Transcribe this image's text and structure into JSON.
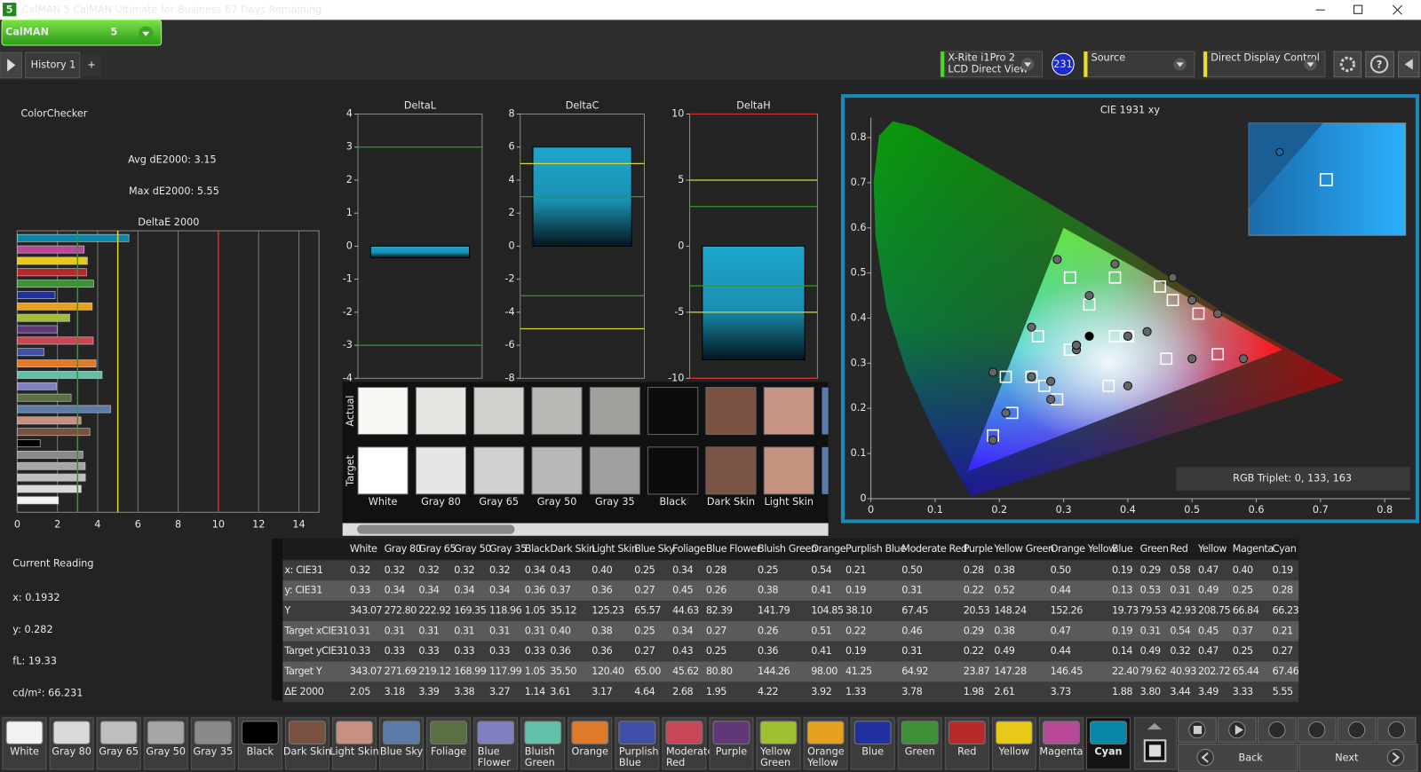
{
  "window": {
    "icon": "5",
    "title": "CalMAN 5 CalMAN Ultimate for Business 67 Days Remaining"
  },
  "logo": {
    "text": "CalMAN",
    "version": "5"
  },
  "tabs": {
    "items": [
      "History 1"
    ],
    "add": "+"
  },
  "devices": [
    {
      "lines": [
        "X-Rite i1Pro 2",
        "LCD Direct View"
      ],
      "badge": "231"
    },
    {
      "lines": [
        "Source"
      ]
    },
    {
      "lines": [
        "Direct Display Control"
      ]
    }
  ],
  "help": "?",
  "summary": {
    "title": "ColorChecker",
    "avg": "Avg dE2000: 3.15",
    "max": "Max dE2000: 5.55"
  },
  "delta_e_chart": {
    "type": "bar",
    "title": "DeltaE 2000",
    "xlim": [
      0,
      15
    ],
    "xticks": [
      0,
      2,
      4,
      6,
      8,
      10,
      12,
      14
    ],
    "thresholds": [
      {
        "value": 3,
        "color": "#2e9b2e"
      },
      {
        "value": 5,
        "color": "#d8d83a"
      },
      {
        "value": 10,
        "color": "#d23030"
      }
    ]
  },
  "delta_charts": [
    {
      "type": "bar",
      "title": "DeltaL",
      "ylim": [
        -4,
        4
      ],
      "yticks": [
        -4,
        -3,
        -2,
        -1,
        0,
        1,
        2,
        3,
        4
      ],
      "value": -0.35,
      "lines": [
        {
          "value": 3,
          "color": "#2e9b2e"
        },
        {
          "value": -3,
          "color": "#2e9b2e"
        }
      ]
    },
    {
      "type": "bar",
      "title": "DeltaC",
      "ylim": [
        -8,
        8
      ],
      "yticks": [
        -8,
        -6,
        -4,
        -2,
        0,
        2,
        4,
        6,
        8
      ],
      "value": 6,
      "lines": [
        {
          "value": 5,
          "color": "#d8d83a"
        },
        {
          "value": 3,
          "color": "#2e9b2e"
        },
        {
          "value": -3,
          "color": "#2e9b2e"
        },
        {
          "value": -5,
          "color": "#d8d83a"
        }
      ]
    },
    {
      "type": "bar",
      "title": "DeltaH",
      "ylim": [
        -10,
        10
      ],
      "yticks": [
        -10,
        -5,
        0,
        5,
        10
      ],
      "value": -8.6,
      "lines": [
        {
          "value": 10,
          "color": "#d23030"
        },
        {
          "value": 5,
          "color": "#d8d83a"
        },
        {
          "value": 3,
          "color": "#2e9b2e"
        },
        {
          "value": -3,
          "color": "#2e9b2e"
        },
        {
          "value": -5,
          "color": "#d8d83a"
        },
        {
          "value": -10,
          "color": "#d23030"
        }
      ]
    }
  ],
  "swatches": {
    "row_labels": [
      "Actual",
      "Target"
    ],
    "items": [
      {
        "label": "White",
        "actual": "#faf8f5",
        "target": "#ffffff"
      },
      {
        "label": "Gray 80",
        "actual": "#e8e6e2",
        "target": "#e6e6e6"
      },
      {
        "label": "Gray 65",
        "actual": "#d2d0cc",
        "target": "#d0d0d0"
      },
      {
        "label": "Gray 50",
        "actual": "#bab8b4",
        "target": "#b8b8b8"
      },
      {
        "label": "Gray 35",
        "actual": "#a2a09c",
        "target": "#a0a0a0"
      },
      {
        "label": "Black",
        "actual": "#0e0c0a",
        "target": "#0c0c0c"
      },
      {
        "label": "Dark Skin",
        "actual": "#7a5242",
        "target": "#7a5444"
      },
      {
        "label": "Light Skin",
        "actual": "#c89484",
        "target": "#c49480"
      }
    ]
  },
  "table": {
    "header": [
      "White",
      "Gray 80",
      "Gray 65",
      "Gray 50",
      "Gray 35",
      "Black",
      "Dark Skin",
      "Light Skin",
      "Blue Sky",
      "Foliage",
      "Blue Flower",
      "Bluish Green",
      "Orange",
      "Purplish Blue",
      "Moderate Red",
      "Purple",
      "Yellow Green",
      "Orange Yellow",
      "Blue",
      "Green",
      "Red",
      "Yellow",
      "Magenta",
      "Cyan"
    ],
    "rows": [
      {
        "label": "x: CIE31",
        "cells": [
          "0.32",
          "0.32",
          "0.32",
          "0.32",
          "0.32",
          "0.34",
          "0.43",
          "0.40",
          "0.25",
          "0.34",
          "0.28",
          "0.25",
          "0.54",
          "0.21",
          "0.50",
          "0.28",
          "0.38",
          "0.50",
          "0.19",
          "0.29",
          "0.58",
          "0.47",
          "0.40",
          "0.19"
        ]
      },
      {
        "label": "y: CIE31",
        "cells": [
          "0.33",
          "0.34",
          "0.34",
          "0.34",
          "0.34",
          "0.36",
          "0.37",
          "0.36",
          "0.27",
          "0.45",
          "0.26",
          "0.38",
          "0.41",
          "0.19",
          "0.31",
          "0.22",
          "0.52",
          "0.44",
          "0.13",
          "0.53",
          "0.31",
          "0.49",
          "0.25",
          "0.28"
        ]
      },
      {
        "label": "Y",
        "cells": [
          "343.07",
          "272.80",
          "222.92",
          "169.35",
          "118.96",
          "1.05",
          "35.12",
          "125.23",
          "65.57",
          "44.63",
          "82.39",
          "141.79",
          "104.85",
          "38.10",
          "67.45",
          "20.53",
          "148.24",
          "152.26",
          "19.73",
          "79.53",
          "42.93",
          "208.75",
          "66.84",
          "66.23"
        ]
      },
      {
        "label": "Target xCIE31",
        "cells": [
          "0.31",
          "0.31",
          "0.31",
          "0.31",
          "0.31",
          "0.31",
          "0.40",
          "0.38",
          "0.25",
          "0.34",
          "0.27",
          "0.26",
          "0.51",
          "0.22",
          "0.46",
          "0.29",
          "0.38",
          "0.47",
          "0.19",
          "0.31",
          "0.54",
          "0.45",
          "0.37",
          "0.21"
        ]
      },
      {
        "label": "Target yCIE31",
        "cells": [
          "0.33",
          "0.33",
          "0.33",
          "0.33",
          "0.33",
          "0.33",
          "0.36",
          "0.36",
          "0.27",
          "0.43",
          "0.25",
          "0.36",
          "0.41",
          "0.19",
          "0.31",
          "0.22",
          "0.49",
          "0.44",
          "0.14",
          "0.49",
          "0.32",
          "0.47",
          "0.25",
          "0.27"
        ]
      },
      {
        "label": "Target Y",
        "cells": [
          "343.07",
          "271.69",
          "219.12",
          "168.99",
          "117.99",
          "1.05",
          "35.50",
          "120.40",
          "65.00",
          "45.62",
          "80.80",
          "144.26",
          "98.00",
          "41.25",
          "64.92",
          "23.87",
          "147.28",
          "146.45",
          "22.40",
          "79.62",
          "40.93",
          "202.72",
          "65.44",
          "67.46"
        ]
      },
      {
        "label": "ΔE 2000",
        "cells": [
          "2.05",
          "3.18",
          "3.39",
          "3.38",
          "3.27",
          "1.14",
          "3.61",
          "3.17",
          "4.64",
          "2.68",
          "1.95",
          "4.22",
          "3.92",
          "1.33",
          "3.78",
          "1.98",
          "2.61",
          "3.73",
          "1.88",
          "3.80",
          "3.44",
          "3.49",
          "3.33",
          "5.55"
        ]
      }
    ]
  },
  "cie_chart": {
    "type": "scatter",
    "title": "CIE 1931 xy",
    "xlim": [
      0,
      0.84
    ],
    "ylim": [
      0,
      0.84
    ],
    "xticks": [
      0,
      0.1,
      0.2,
      0.3,
      0.4,
      0.5,
      0.6,
      0.7,
      0.8
    ],
    "yticks": [
      0,
      0.1,
      0.2,
      0.3,
      0.4,
      0.5,
      0.6,
      0.7,
      0.8
    ],
    "gamut": {
      "x": [
        0.64,
        0.3,
        0.15
      ],
      "y": [
        0.33,
        0.6,
        0.06
      ]
    },
    "readout": "RGB Triplet: 0, 133, 163"
  },
  "current_reading": {
    "title": "Current Reading",
    "lines": [
      "x: 0.1932",
      "y: 0.282",
      "fL: 19.33",
      "cd/m²: 66.231"
    ]
  },
  "patch_buttons": {
    "selected": 23,
    "items": [
      {
        "label": "White",
        "color": "#f2f2f2"
      },
      {
        "label": "Gray 80",
        "color": "#dadada"
      },
      {
        "label": "Gray 65",
        "color": "#bebebe"
      },
      {
        "label": "Gray 50",
        "color": "#a6a6a6"
      },
      {
        "label": "Gray 35",
        "color": "#8a8a8a"
      },
      {
        "label": "Black",
        "color": "#000000"
      },
      {
        "label": "Dark Skin",
        "color": "#7a5040"
      },
      {
        "label": "Light Skin",
        "color": "#c89080"
      },
      {
        "label": "Blue Sky",
        "color": "#5a7aa8"
      },
      {
        "label": "Foliage",
        "color": "#5a7040"
      },
      {
        "label": "Blue Flower",
        "color": "#8080c0"
      },
      {
        "label": "Bluish Green",
        "color": "#60c0a8"
      },
      {
        "label": "Orange",
        "color": "#e07a28"
      },
      {
        "label": "Purplish Blue",
        "color": "#4050a8"
      },
      {
        "label": "Moderate Red",
        "color": "#c84858"
      },
      {
        "label": "Purple",
        "color": "#603878"
      },
      {
        "label": "Yellow Green",
        "color": "#a0c030"
      },
      {
        "label": "Orange Yellow",
        "color": "#e8a020"
      },
      {
        "label": "Blue",
        "color": "#2030a0"
      },
      {
        "label": "Green",
        "color": "#40903a"
      },
      {
        "label": "Red",
        "color": "#b82828"
      },
      {
        "label": "Yellow",
        "color": "#e8c818"
      },
      {
        "label": "Magenta",
        "color": "#b84898"
      },
      {
        "label": "Cyan",
        "color": "#0888a8"
      }
    ]
  },
  "nav": {
    "back": "Back",
    "next": "Next"
  }
}
